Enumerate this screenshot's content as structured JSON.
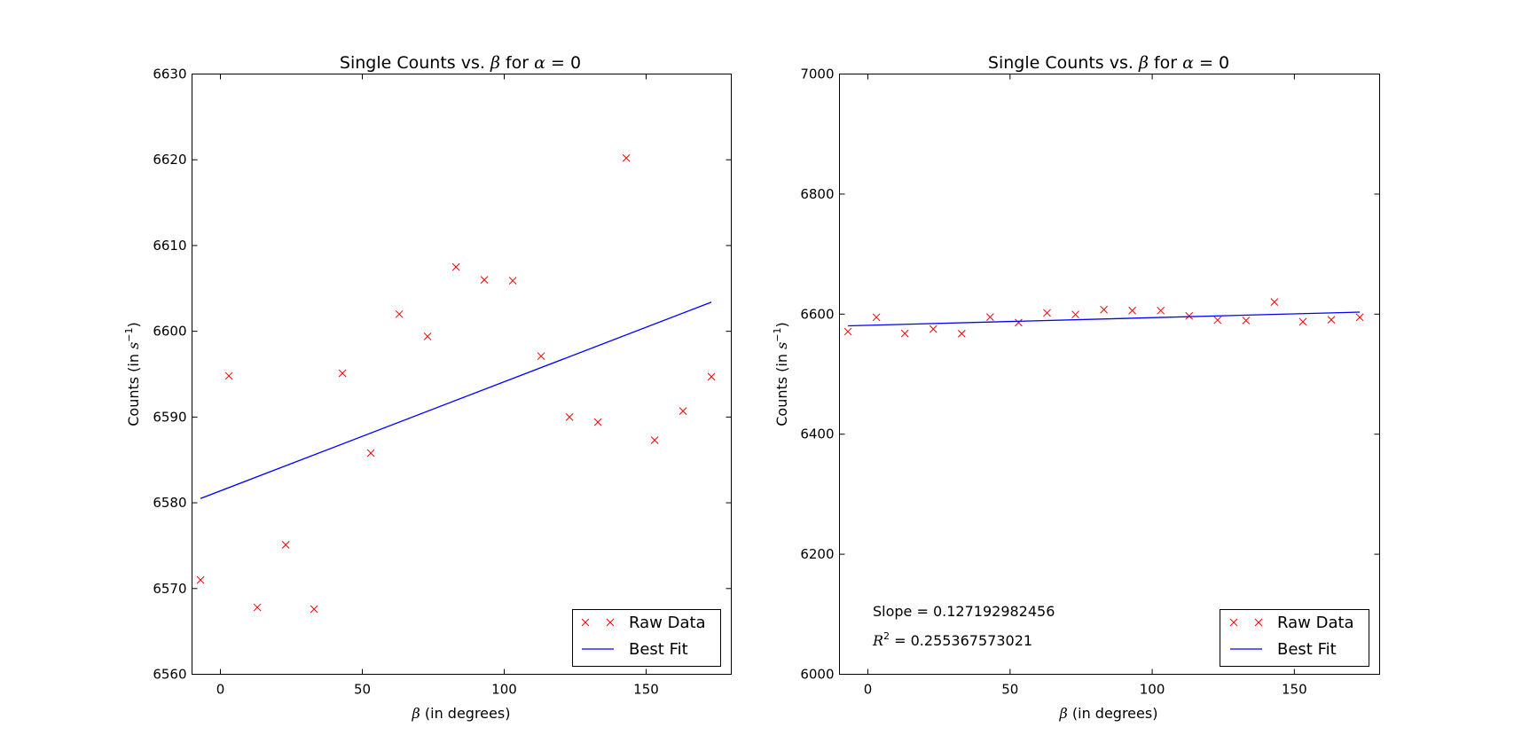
{
  "chart_data": [
    {
      "type": "scatter",
      "title_prefix": "Single Counts vs. ",
      "title_beta": "β",
      "title_mid": " for ",
      "title_alpha": "α",
      "title_eq": " = 0",
      "xlabel_sym": "β",
      "xlabel_text": " (in degrees)",
      "ylabel_text": "Counts (in ",
      "ylabel_unit": "s",
      "ylabel_exp": "−1",
      "ylabel_close": ")",
      "xlim": [
        -10,
        180
      ],
      "ylim": [
        6560,
        6630
      ],
      "xticks": [
        0,
        50,
        100,
        150
      ],
      "yticks": [
        6560,
        6570,
        6580,
        6590,
        6600,
        6610,
        6620,
        6630
      ],
      "grid": false,
      "legend_position": "lower right",
      "series": [
        {
          "name": "Raw Data",
          "kind": "markers",
          "color": "#ff0000",
          "x": [
            -7,
            3,
            13,
            23,
            33,
            43,
            53,
            63,
            73,
            83,
            93,
            103,
            113,
            123,
            133,
            143,
            153,
            163,
            173
          ],
          "y": [
            6571,
            6594.8,
            6567.8,
            6575.1,
            6567.6,
            6595.1,
            6585.8,
            6602,
            6599.4,
            6607.5,
            6606,
            6605.9,
            6597.1,
            6590,
            6589.4,
            6620.2,
            6587.3,
            6590.7,
            6594.7
          ]
        },
        {
          "name": "Best Fit",
          "kind": "line",
          "color": "#0000ff",
          "x": [
            -7,
            173
          ],
          "y": [
            6580.5,
            6603.4
          ]
        }
      ]
    },
    {
      "type": "scatter",
      "title_prefix": "Single Counts vs. ",
      "title_beta": "β",
      "title_mid": " for ",
      "title_alpha": "α",
      "title_eq": " = 0",
      "xlabel_sym": "β",
      "xlabel_text": " (in degrees)",
      "ylabel_text": "Counts (in ",
      "ylabel_unit": "s",
      "ylabel_exp": "−1",
      "ylabel_close": ")",
      "xlim": [
        -10,
        180
      ],
      "ylim": [
        6000,
        7000
      ],
      "xticks": [
        0,
        50,
        100,
        150
      ],
      "yticks": [
        6000,
        6200,
        6400,
        6600,
        6800,
        7000
      ],
      "grid": false,
      "legend_position": "lower right",
      "annotations": {
        "slope_text": "Slope = 0.127192982456",
        "r2_sym": "R",
        "r2_exp": "2",
        "r2_text": " = 0.255367573021"
      },
      "series": [
        {
          "name": "Raw Data",
          "kind": "markers",
          "color": "#ff0000",
          "x": [
            -7,
            3,
            13,
            23,
            33,
            43,
            53,
            63,
            73,
            83,
            93,
            103,
            113,
            123,
            133,
            143,
            153,
            163,
            173
          ],
          "y": [
            6571,
            6594.8,
            6567.8,
            6575.1,
            6567.6,
            6595.1,
            6585.8,
            6602,
            6599.4,
            6607.5,
            6606,
            6605.9,
            6597.1,
            6590,
            6589.4,
            6620.2,
            6587.3,
            6590.7,
            6594.7
          ]
        },
        {
          "name": "Best Fit",
          "kind": "line",
          "color": "#0000ff",
          "x": [
            -7,
            173
          ],
          "y": [
            6580.5,
            6603.4
          ]
        }
      ]
    }
  ]
}
